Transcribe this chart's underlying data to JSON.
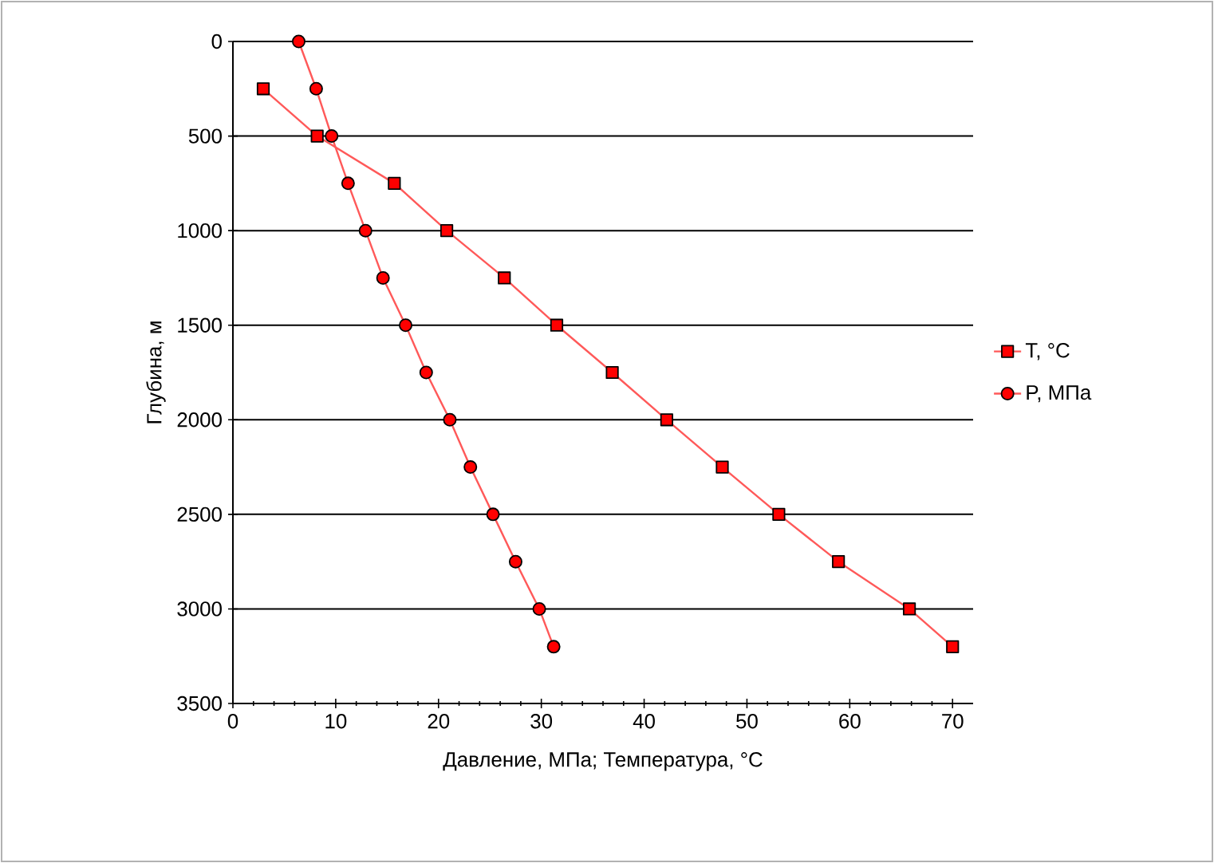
{
  "chart_data": {
    "type": "line",
    "xlabel": "Давление,  МПа; Температура,  °С",
    "ylabel": "Глубина,  м",
    "xlim": [
      0,
      72
    ],
    "xticks": [
      0,
      10,
      20,
      30,
      40,
      50,
      60,
      70
    ],
    "ylim": [
      3500,
      0
    ],
    "yticks": [
      0,
      500,
      1000,
      1500,
      2000,
      2500,
      3000,
      3500
    ],
    "grid": "y",
    "legend": "right",
    "series": [
      {
        "name": "T,  °C",
        "color": "#ff0000",
        "marker": "square",
        "x": [
          2.95,
          8.2,
          15.7,
          20.8,
          26.4,
          31.5,
          36.9,
          42.2,
          47.6,
          53.1,
          58.9,
          65.8,
          70.0
        ],
        "values": [
          250,
          500,
          750,
          1000,
          1250,
          1500,
          1750,
          2000,
          2250,
          2500,
          2750,
          3000,
          3200
        ]
      },
      {
        "name": "P, МПа",
        "color": "#ff0000",
        "marker": "circle",
        "x": [
          6.4,
          8.1,
          9.6,
          11.2,
          12.9,
          14.6,
          16.8,
          18.8,
          21.1,
          23.1,
          25.3,
          27.5,
          29.8,
          31.2
        ],
        "values": [
          0,
          250,
          500,
          750,
          1000,
          1250,
          1500,
          1750,
          2000,
          2250,
          2500,
          2750,
          3000,
          3200
        ]
      }
    ]
  }
}
